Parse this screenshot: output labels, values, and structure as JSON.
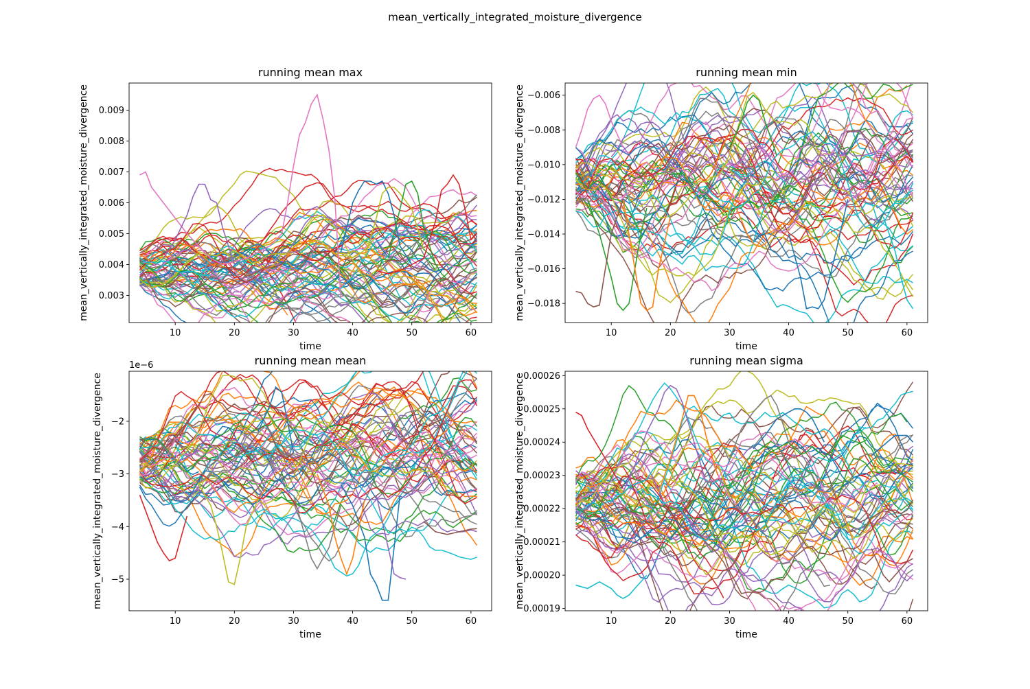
{
  "figure_title": "mean_vertically_integrated_moisture_divergence",
  "colors": [
    "#1f77b4",
    "#ff7f0e",
    "#2ca02c",
    "#d62728",
    "#9467bd",
    "#8c564b",
    "#e377c2",
    "#7f7f7f",
    "#bcbd22",
    "#17becf"
  ],
  "series_count_per_panel": 80,
  "chart_data": [
    {
      "type": "line",
      "title": "running mean max",
      "xlabel": "time",
      "ylabel": "mean_vertically_integrated_moisture_divergence",
      "xlim": [
        2.2,
        63.5
      ],
      "ylim": [
        0.00212,
        0.00988
      ],
      "xticks": [
        10,
        20,
        30,
        40,
        50,
        60
      ],
      "xtick_labels": [
        "10",
        "20",
        "30",
        "40",
        "50",
        "60"
      ],
      "yticks": [
        0.003,
        0.004,
        0.005,
        0.006,
        0.007,
        0.008,
        0.009
      ],
      "ytick_labels": [
        "0.003",
        "0.004",
        "0.005",
        "0.006",
        "0.007",
        "0.008",
        "0.009"
      ],
      "offset_text": "",
      "x_range": [
        4,
        61
      ],
      "base_level": 0.0039,
      "spread": 0.0008,
      "notable_series": [
        {
          "color": "#e377c2",
          "x": [
            4,
            5,
            6,
            8,
            10,
            12,
            14,
            16,
            18,
            20,
            22,
            24,
            26,
            28,
            29,
            30,
            31,
            32,
            33,
            34,
            35,
            36,
            37,
            38
          ],
          "y": [
            0.0069,
            0.007,
            0.0065,
            0.006,
            0.0055,
            0.005,
            0.0046,
            0.0042,
            0.004,
            0.0041,
            0.0042,
            0.0044,
            0.0046,
            0.005,
            0.006,
            0.0072,
            0.0082,
            0.0086,
            0.0092,
            0.0095,
            0.0087,
            0.0077,
            0.0061,
            0.0029
          ]
        },
        {
          "color": "#d62728",
          "x": [
            44,
            46,
            48,
            50,
            52,
            54,
            55,
            56,
            57,
            58,
            59,
            60,
            61
          ],
          "y": [
            0.0038,
            0.0037,
            0.0038,
            0.004,
            0.0042,
            0.0054,
            0.0064,
            0.0066,
            0.0069,
            0.0066,
            0.0058,
            0.0048,
            0.005
          ]
        },
        {
          "color": "#1f77b4",
          "x": [
            38,
            40,
            41,
            42,
            43,
            44,
            45,
            46,
            47,
            48,
            50
          ],
          "y": [
            0.0044,
            0.006,
            0.0064,
            0.0067,
            0.0067,
            0.0066,
            0.0067,
            0.0063,
            0.0056,
            0.0046,
            0.004
          ]
        },
        {
          "color": "#bcbd22",
          "x": [
            42,
            44,
            45,
            46,
            47,
            48,
            50,
            52
          ],
          "y": [
            0.0042,
            0.0055,
            0.0063,
            0.0065,
            0.0065,
            0.0063,
            0.0058,
            0.0045
          ]
        },
        {
          "color": "#2ca02c",
          "x": [
            46,
            48,
            49,
            50,
            51,
            52,
            54
          ],
          "y": [
            0.0042,
            0.0058,
            0.0066,
            0.0067,
            0.0063,
            0.0052,
            0.004
          ]
        },
        {
          "color": "#9467bd",
          "x": [
            8,
            10,
            12,
            13,
            14,
            15,
            16,
            17,
            18,
            20
          ],
          "y": [
            0.0042,
            0.0048,
            0.0056,
            0.0062,
            0.0066,
            0.0066,
            0.0061,
            0.006,
            0.0052,
            0.004
          ]
        }
      ],
      "markers": {
        "peak_value": 0.0095,
        "peak_x": 34
      }
    },
    {
      "type": "line",
      "title": "running mean min",
      "xlabel": "time",
      "ylabel": "mean_vertically_integrated_moisture_divergence",
      "xlim": [
        2.2,
        63.5
      ],
      "ylim": [
        -0.0191,
        -0.0053
      ],
      "xticks": [
        10,
        20,
        30,
        40,
        50,
        60
      ],
      "xtick_labels": [
        "10",
        "20",
        "30",
        "40",
        "50",
        "60"
      ],
      "yticks": [
        -0.018,
        -0.016,
        -0.014,
        -0.012,
        -0.01,
        -0.008,
        -0.006
      ],
      "ytick_labels": [
        "−0.018",
        "−0.016",
        "−0.014",
        "−0.012",
        "−0.010",
        "−0.008",
        "−0.006"
      ],
      "offset_text": "",
      "x_range": [
        4,
        61
      ],
      "base_level": -0.011,
      "spread": 0.0022,
      "notable_series": [
        {
          "color": "#2ca02c",
          "x": [
            6,
            8,
            10,
            11,
            12,
            13,
            14,
            15,
            16
          ],
          "y": [
            -0.012,
            -0.014,
            -0.0165,
            -0.018,
            -0.0184,
            -0.018,
            -0.016,
            -0.014,
            -0.0125
          ]
        },
        {
          "color": "#ff7f0e",
          "x": [
            12,
            14,
            15,
            16,
            17,
            18,
            20
          ],
          "y": [
            -0.012,
            -0.016,
            -0.018,
            -0.0184,
            -0.0182,
            -0.016,
            -0.013
          ]
        },
        {
          "color": "#1f77b4",
          "x": [
            40,
            42,
            43,
            44,
            45,
            46,
            48,
            50
          ],
          "y": [
            -0.014,
            -0.0165,
            -0.0183,
            -0.0182,
            -0.0183,
            -0.0178,
            -0.015,
            -0.012
          ]
        },
        {
          "color": "#8c564b",
          "x": [
            4,
            5,
            6,
            7,
            8,
            9,
            10,
            12
          ],
          "y": [
            -0.0173,
            -0.0174,
            -0.018,
            -0.0182,
            -0.0181,
            -0.016,
            -0.014,
            -0.012
          ]
        },
        {
          "color": "#e377c2",
          "x": [
            4,
            5,
            6,
            7,
            8,
            9,
            10,
            12
          ],
          "y": [
            -0.009,
            -0.008,
            -0.0068,
            -0.0062,
            -0.006,
            -0.0065,
            -0.0075,
            -0.009
          ]
        },
        {
          "color": "#2ca02c",
          "x": [
            30,
            32,
            33,
            34,
            35,
            36,
            38
          ],
          "y": [
            -0.009,
            -0.0075,
            -0.0064,
            -0.006,
            -0.0063,
            -0.0075,
            -0.0095
          ]
        },
        {
          "color": "#17becf",
          "x": [
            56,
            58,
            59,
            60,
            61
          ],
          "y": [
            -0.013,
            -0.015,
            -0.0165,
            -0.0178,
            -0.0183
          ]
        },
        {
          "color": "#e377c2",
          "x": [
            55,
            57,
            59,
            60,
            61
          ],
          "y": [
            -0.0095,
            -0.0088,
            -0.008,
            -0.0074,
            -0.0073
          ]
        }
      ]
    },
    {
      "type": "line",
      "title": "running mean mean",
      "xlabel": "time",
      "ylabel": "mean_vertically_integrated_moisture_divergence",
      "xlim": [
        2.2,
        63.5
      ],
      "ylim": [
        -5.6e-06,
        -1.05e-06
      ],
      "xticks": [
        10,
        20,
        30,
        40,
        50,
        60
      ],
      "xtick_labels": [
        "10",
        "20",
        "30",
        "40",
        "50",
        "60"
      ],
      "yticks": [
        -5e-06,
        -4e-06,
        -3e-06,
        -2e-06
      ],
      "ytick_labels": [
        "−5",
        "−4",
        "−3",
        "−2"
      ],
      "offset_text": "1e−6",
      "x_range": [
        4,
        61
      ],
      "base_level": -2.75e-06,
      "spread": 6e-07,
      "notable_series": [
        {
          "color": "#1f77b4",
          "x": [
            38,
            40,
            42,
            43,
            44,
            45,
            46,
            47,
            48
          ],
          "y": [
            -3.2e-06,
            -3.6e-06,
            -4.2e-06,
            -4.9e-06,
            -5.1e-06,
            -5.4e-06,
            -5.4e-06,
            -4.4e-06,
            -3.4e-06
          ]
        },
        {
          "color": "#bcbd22",
          "x": [
            14,
            16,
            17,
            18,
            19,
            20,
            21,
            22,
            24
          ],
          "y": [
            -3.2e-06,
            -3.6e-06,
            -4e-06,
            -4.5e-06,
            -5.05e-06,
            -5.1e-06,
            -4.6e-06,
            -4e-06,
            -3.5e-06
          ]
        },
        {
          "color": "#d62728",
          "x": [
            4,
            6,
            7,
            8,
            9,
            10,
            12
          ],
          "y": [
            -3.4e-06,
            -4e-06,
            -4.3e-06,
            -4.5e-06,
            -4.65e-06,
            -4.6e-06,
            -3.8e-06
          ]
        },
        {
          "color": "#9467bd",
          "x": [
            44,
            45,
            46,
            47,
            48,
            49
          ],
          "y": [
            -3.4e-06,
            -3.9e-06,
            -4.4e-06,
            -4.9e-06,
            -4.97e-06,
            -5e-06
          ]
        },
        {
          "color": "#1f77b4",
          "x": [
            24,
            26,
            27,
            28,
            29,
            30
          ],
          "y": [
            -2.2e-06,
            -1.7e-06,
            -1.35e-06,
            -1.45e-06,
            -2e-06,
            -2.6e-06
          ]
        },
        {
          "color": "#7f7f7f",
          "x": [
            30,
            32,
            33,
            34,
            35,
            36,
            38
          ],
          "y": [
            -3.4e-06,
            -4.2e-06,
            -4.6e-06,
            -4.8e-06,
            -4.6e-06,
            -4.4e-06,
            -3.6e-06
          ]
        },
        {
          "color": "#ff7f0e",
          "x": [
            34,
            36,
            37,
            38,
            39,
            40,
            42
          ],
          "y": [
            -3e-06,
            -3.6e-06,
            -4.2e-06,
            -4.6e-06,
            -4.9e-06,
            -4.6e-06,
            -3.5e-06
          ]
        },
        {
          "color": "#8c564b",
          "x": [
            52,
            54,
            56,
            58,
            60,
            61
          ],
          "y": [
            -3.9e-06,
            -4.1e-06,
            -4.15e-06,
            -4.1e-06,
            -4.05e-06,
            -4.04e-06
          ]
        }
      ]
    },
    {
      "type": "line",
      "title": "running mean sigma",
      "xlabel": "time",
      "ylabel": "mean_vertically_integrated_moisture_divergence",
      "xlim": [
        2.2,
        63.5
      ],
      "ylim": [
        0.0001893,
        0.0002613
      ],
      "xticks": [
        10,
        20,
        30,
        40,
        50,
        60
      ],
      "xtick_labels": [
        "10",
        "20",
        "30",
        "40",
        "50",
        "60"
      ],
      "yticks": [
        0.00019,
        0.0002,
        0.00021,
        0.00022,
        0.00023,
        0.00024,
        0.00025,
        0.00026
      ],
      "ytick_labels": [
        "0.00019",
        "0.00020",
        "0.00021",
        "0.00022",
        "0.00023",
        "0.00024",
        "0.00025",
        "0.00026"
      ],
      "offset_text": "",
      "x_range": [
        4,
        61
      ],
      "base_level": 0.000222,
      "spread": 1.1e-05,
      "notable_series": [
        {
          "color": "#9467bd",
          "x": [
            12,
            14,
            16,
            18,
            19,
            20,
            21,
            22,
            24,
            26
          ],
          "y": [
            0.000225,
            0.000233,
            0.000243,
            0.00025,
            0.000255,
            0.000257,
            0.000256,
            0.000252,
            0.00024,
            0.000228
          ]
        },
        {
          "color": "#ff7f0e",
          "x": [
            18,
            20,
            22,
            23,
            24,
            25,
            26,
            28
          ],
          "y": [
            0.000225,
            0.000235,
            0.000247,
            0.000254,
            0.000254,
            0.00025,
            0.000242,
            0.00023
          ]
        },
        {
          "color": "#17becf",
          "x": [
            4,
            6,
            8,
            10,
            11,
            12,
            13,
            14,
            16
          ],
          "y": [
            0.000197,
            0.000196,
            0.000198,
            0.000196,
            0.000194,
            0.000193,
            0.000194,
            0.000196,
            0.0002
          ]
        },
        {
          "color": "#1f77b4",
          "x": [
            34,
            36,
            38,
            40,
            41,
            42,
            43,
            44,
            46
          ],
          "y": [
            0.000238,
            0.000242,
            0.000247,
            0.000249,
            0.00025,
            0.00025,
            0.000249,
            0.000247,
            0.00024
          ]
        },
        {
          "color": "#7f7f7f",
          "x": [
            30,
            32,
            34,
            36,
            37,
            38,
            40
          ],
          "y": [
            0.000235,
            0.000244,
            0.000249,
            0.000253,
            0.000254,
            0.000251,
            0.00024
          ]
        },
        {
          "color": "#d62728",
          "x": [
            4,
            5,
            6,
            8,
            10,
            12
          ],
          "y": [
            0.000249,
            0.000248,
            0.000244,
            0.000238,
            0.000232,
            0.000226
          ]
        },
        {
          "color": "#8c564b",
          "x": [
            54,
            56,
            57,
            58,
            60,
            61
          ],
          "y": [
            0.000208,
            0.0002,
            0.000198,
            0.0002,
            0.000204,
            0.000205
          ]
        },
        {
          "color": "#1f77b4",
          "x": [
            54,
            56,
            58,
            59,
            60,
            61
          ],
          "y": [
            0.000236,
            0.000239,
            0.000242,
            0.000242,
            0.000242,
            0.00024
          ]
        }
      ]
    }
  ]
}
